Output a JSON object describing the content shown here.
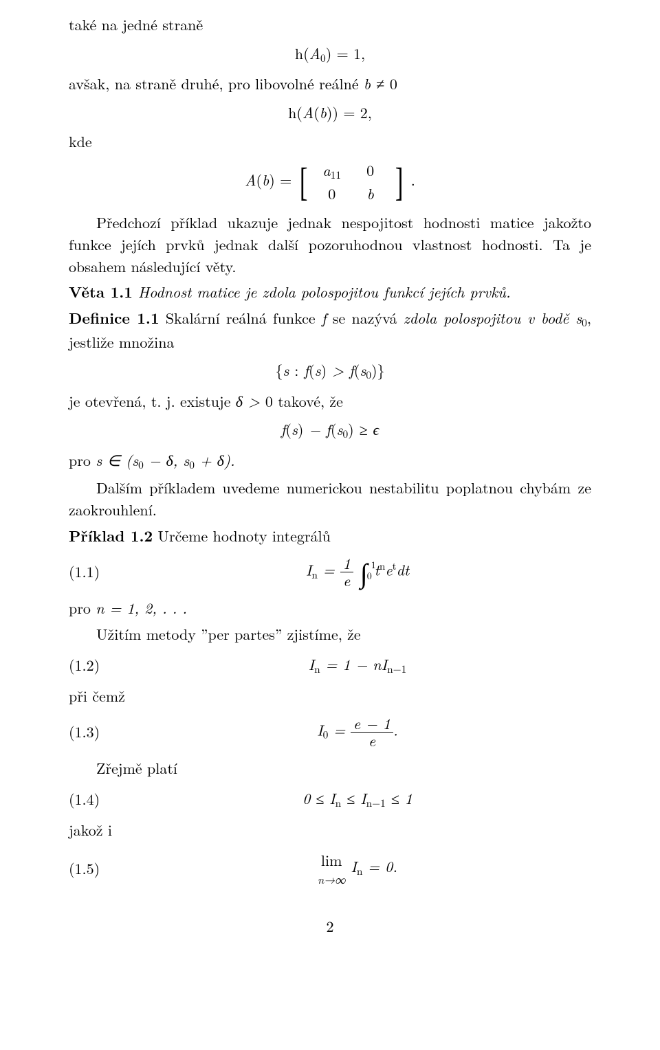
{
  "p1": "také na jedné straně",
  "eq1": "h(A₀) = 1,",
  "p2": "avšak, na straně druhé, pro libovolné reálné b ≠ 0",
  "eq2": "h(A(b)) = 2,",
  "p3": "kde",
  "matrix": {
    "lhs": "A(b) = ",
    "a11": "a",
    "a11sub": "11",
    "a12": "0",
    "a21": "0",
    "a22": "b",
    "tail": "."
  },
  "p4": "Předchozí příklad ukazuje jednak nespojitost hodnosti matice jakožto funkce jejích prvků jednak další pozoruhodnou vlastnost hodnosti. Ta je obsahem následující věty.",
  "veta_label": "Věta 1.1",
  "veta_body": " Hodnost matice je zdola polospojitou funkcí jejích prvků.",
  "def_label": "Definice 1.1",
  "def_body_a": " Skalární reálná funkce ",
  "def_f": "f",
  "def_body_b": " se nazývá ",
  "def_ital": "zdola polospojitou v bodě s",
  "def_s0sub": "0",
  "def_body_c": ", jestliže množina",
  "eq_set": "{s : f(s) > f(s₀)}",
  "p5a": "je otevřená, t. j. existuje ",
  "p5b": "δ > 0",
  "p5c": " takové, že",
  "eq_eps": "f(s) − f(s₀) ≥ ϵ",
  "p6a": "pro ",
  "p6b": "s ∈ (s₀ − δ, s₀ + δ).",
  "p7": "Dalším příkladem uvedeme numerickou nestabilitu poplatnou chybám ze zaokrouhlení.",
  "ex_label": "Příklad 1.2",
  "ex_body": " Určeme hodnoty integrálů",
  "eq11": {
    "label": "(1.1)",
    "body_lhs": "I",
    "body_lhs_sub": "n",
    "eq": " = ",
    "frac_n": "1",
    "frac_d": "e",
    "int_top": "1",
    "int_bot": "0",
    "integrand_a": "t",
    "integrand_sup": "n",
    "integrand_b": "e",
    "integrand_bsup": "t",
    "integrand_c": "dt"
  },
  "p8a": "pro ",
  "p8b": "n = 1, 2, . . .",
  "p9": "Užitím metody ”per partes” zjistíme, že",
  "eq12": {
    "label": "(1.2)",
    "body": "Iₙ = 1 − nIₙ₋₁"
  },
  "p10": "při čemž",
  "eq13": {
    "label": "(1.3)",
    "lhs": "I₀ = ",
    "frac_n": "e − 1",
    "frac_d": "e",
    "tail": "."
  },
  "p11": "Zřejmě platí",
  "eq14": {
    "label": "(1.4)",
    "body": "0 ≤ Iₙ ≤ Iₙ₋₁ ≤ 1"
  },
  "p12": "jakož i",
  "eq15": {
    "label": "(1.5)",
    "lim_top": "lim",
    "lim_bot": "n→∞",
    "body": " Iₙ = 0."
  },
  "pagenum": "2"
}
